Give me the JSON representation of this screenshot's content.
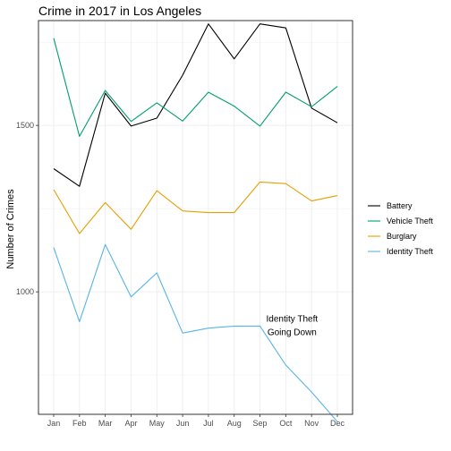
{
  "chart_data": {
    "type": "line",
    "title": "Crime in 2017 in Los Angeles",
    "xlabel": "",
    "ylabel": "Number of Crimes",
    "categories": [
      "Jan",
      "Feb",
      "Mar",
      "Apr",
      "May",
      "Jun",
      "Jul",
      "Aug",
      "Sep",
      "Oct",
      "Nov",
      "Dec"
    ],
    "ylim": [
      632,
      1815
    ],
    "yticks": [
      1000,
      1500
    ],
    "grid": true,
    "legend_position": "right",
    "series": [
      {
        "name": "Battery",
        "color": "#000000",
        "values": [
          1370,
          1317,
          1597,
          1498,
          1522,
          1651,
          1805,
          1700,
          1805,
          1793,
          1552,
          1508
        ]
      },
      {
        "name": "Vehicle Theft",
        "color": "#009E73",
        "values": [
          1762,
          1467,
          1605,
          1512,
          1568,
          1513,
          1600,
          1558,
          1498,
          1600,
          1556,
          1617
        ]
      },
      {
        "name": "Burglary",
        "color": "#E69F00",
        "values": [
          1307,
          1175,
          1268,
          1188,
          1304,
          1243,
          1238,
          1238,
          1330,
          1325,
          1273,
          1289
        ]
      },
      {
        "name": "Identity Theft",
        "color": "#56B4E9",
        "values": [
          1133,
          910,
          1142,
          985,
          1057,
          876,
          891,
          897,
          897,
          780,
          699,
          610
        ]
      }
    ],
    "annotations": [
      {
        "lines": [
          "Identity Theft",
          "Going Down"
        ],
        "month": "Oct",
        "value": 910
      }
    ]
  }
}
